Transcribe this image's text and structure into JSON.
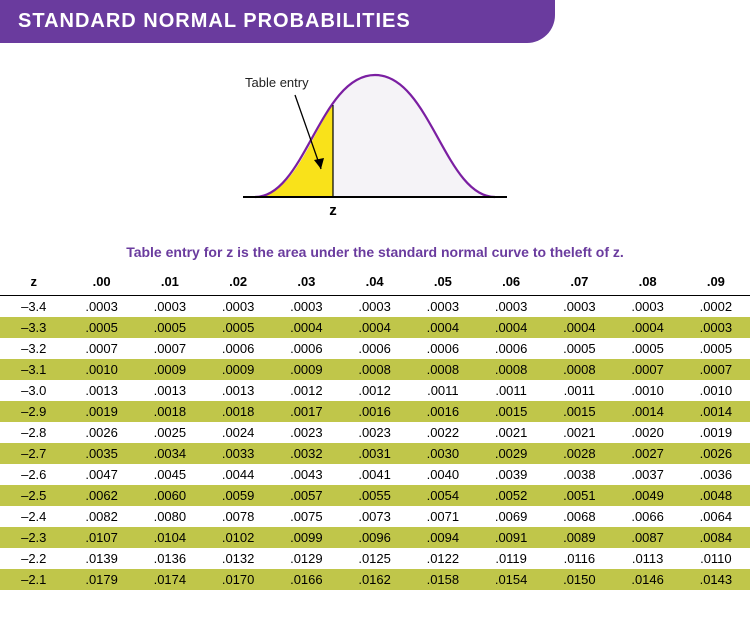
{
  "banner": {
    "title": "STANDARD NORMAL PROBABILITIES",
    "bg_color": "#6a3b9e"
  },
  "figure": {
    "curve_stroke": "#7b1fa2",
    "curve_fill": "#f5f3f7",
    "shade_fill": "#f9e21a",
    "axis_stroke": "#000000",
    "arrow_stroke": "#000000",
    "z_label": "z",
    "entry_label": "Table entry"
  },
  "caption": {
    "text": "Table entry for z is the area under the standard normal curve to theleft of z.",
    "color": "#6a3b9e"
  },
  "table": {
    "row_alt_color": "#c0c64a",
    "header_label": "z",
    "columns": [
      ".00",
      ".01",
      ".02",
      ".03",
      ".04",
      ".05",
      ".06",
      ".07",
      ".08",
      ".09"
    ],
    "rows": [
      {
        "z": "–3.4",
        "v": [
          ".0003",
          ".0003",
          ".0003",
          ".0003",
          ".0003",
          ".0003",
          ".0003",
          ".0003",
          ".0003",
          ".0002"
        ]
      },
      {
        "z": "–3.3",
        "v": [
          ".0005",
          ".0005",
          ".0005",
          ".0004",
          ".0004",
          ".0004",
          ".0004",
          ".0004",
          ".0004",
          ".0003"
        ]
      },
      {
        "z": "–3.2",
        "v": [
          ".0007",
          ".0007",
          ".0006",
          ".0006",
          ".0006",
          ".0006",
          ".0006",
          ".0005",
          ".0005",
          ".0005"
        ]
      },
      {
        "z": "–3.1",
        "v": [
          ".0010",
          ".0009",
          ".0009",
          ".0009",
          ".0008",
          ".0008",
          ".0008",
          ".0008",
          ".0007",
          ".0007"
        ]
      },
      {
        "z": "–3.0",
        "v": [
          ".0013",
          ".0013",
          ".0013",
          ".0012",
          ".0012",
          ".0011",
          ".0011",
          ".0011",
          ".0010",
          ".0010"
        ]
      },
      {
        "z": "–2.9",
        "v": [
          ".0019",
          ".0018",
          ".0018",
          ".0017",
          ".0016",
          ".0016",
          ".0015",
          ".0015",
          ".0014",
          ".0014"
        ]
      },
      {
        "z": "–2.8",
        "v": [
          ".0026",
          ".0025",
          ".0024",
          ".0023",
          ".0023",
          ".0022",
          ".0021",
          ".0021",
          ".0020",
          ".0019"
        ]
      },
      {
        "z": "–2.7",
        "v": [
          ".0035",
          ".0034",
          ".0033",
          ".0032",
          ".0031",
          ".0030",
          ".0029",
          ".0028",
          ".0027",
          ".0026"
        ]
      },
      {
        "z": "–2.6",
        "v": [
          ".0047",
          ".0045",
          ".0044",
          ".0043",
          ".0041",
          ".0040",
          ".0039",
          ".0038",
          ".0037",
          ".0036"
        ]
      },
      {
        "z": "–2.5",
        "v": [
          ".0062",
          ".0060",
          ".0059",
          ".0057",
          ".0055",
          ".0054",
          ".0052",
          ".0051",
          ".0049",
          ".0048"
        ]
      },
      {
        "z": "–2.4",
        "v": [
          ".0082",
          ".0080",
          ".0078",
          ".0075",
          ".0073",
          ".0071",
          ".0069",
          ".0068",
          ".0066",
          ".0064"
        ]
      },
      {
        "z": "–2.3",
        "v": [
          ".0107",
          ".0104",
          ".0102",
          ".0099",
          ".0096",
          ".0094",
          ".0091",
          ".0089",
          ".0087",
          ".0084"
        ]
      },
      {
        "z": "–2.2",
        "v": [
          ".0139",
          ".0136",
          ".0132",
          ".0129",
          ".0125",
          ".0122",
          ".0119",
          ".0116",
          ".0113",
          ".0110"
        ]
      },
      {
        "z": "–2.1",
        "v": [
          ".0179",
          ".0174",
          ".0170",
          ".0166",
          ".0162",
          ".0158",
          ".0154",
          ".0150",
          ".0146",
          ".0143"
        ]
      }
    ]
  }
}
